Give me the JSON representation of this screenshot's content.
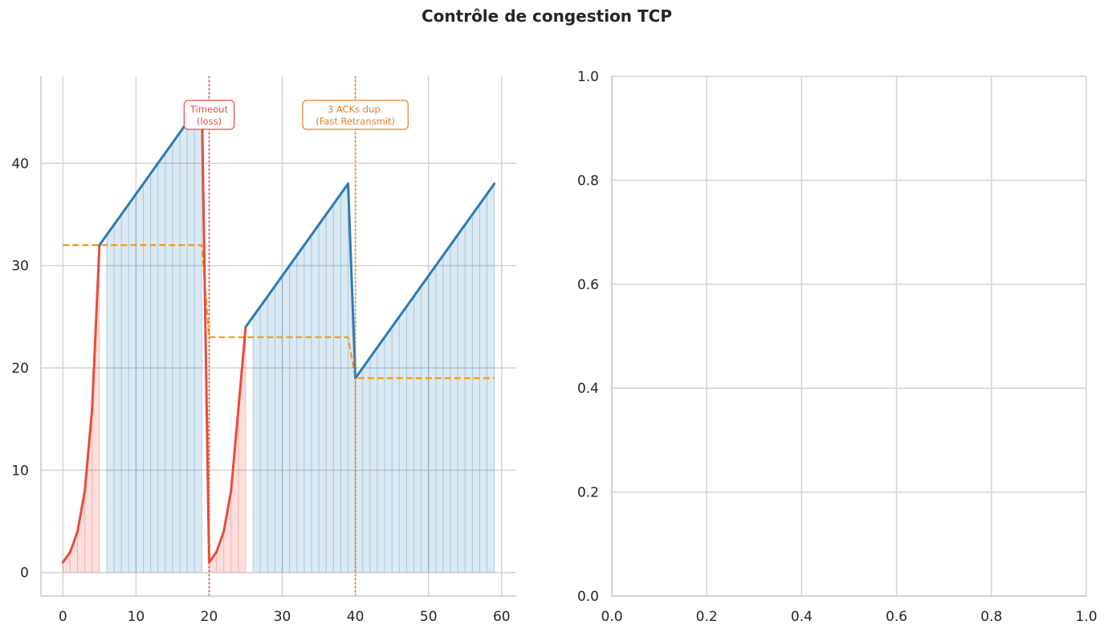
{
  "title": "Contrôle de congestion TCP",
  "colors": {
    "slow_start": "#e74c3c",
    "congestion_avoidance": "#2b7bb9",
    "ssthresh": "#f39c12",
    "timeout": "#e74c3c",
    "fast_retransmit": "#e67e22",
    "grid": "#d3d3d3",
    "text": "#262626"
  },
  "chart_data": [
    {
      "type": "line",
      "title": "",
      "xlabel": "",
      "ylabel": "",
      "xlim": [
        -3,
        62
      ],
      "ylim": [
        -2.3,
        48.5
      ],
      "xticks": [
        0,
        10,
        20,
        30,
        40,
        50,
        60
      ],
      "yticks": [
        0,
        10,
        20,
        30,
        40
      ],
      "grid": true,
      "legend": "none",
      "series": [
        {
          "role": "cwnd",
          "x": [
            0,
            1,
            2,
            3,
            4,
            5,
            6,
            7,
            8,
            9,
            10,
            11,
            12,
            13,
            14,
            15,
            16,
            17,
            18,
            19,
            20,
            21,
            22,
            23,
            24,
            25,
            26,
            27,
            28,
            29,
            30,
            31,
            32,
            33,
            34,
            35,
            36,
            37,
            38,
            39,
            40,
            41,
            42,
            43,
            44,
            45,
            46,
            47,
            48,
            49,
            50,
            51,
            52,
            53,
            54,
            55,
            56,
            57,
            58,
            59
          ],
          "y": [
            1,
            2,
            4,
            8,
            16,
            32,
            33,
            34,
            35,
            36,
            37,
            38,
            39,
            40,
            41,
            42,
            43,
            44,
            45,
            46,
            1,
            2,
            4,
            8,
            16,
            24,
            25,
            26,
            27,
            28,
            29,
            30,
            31,
            32,
            33,
            34,
            35,
            36,
            37,
            38,
            19,
            20,
            21,
            22,
            23,
            24,
            25,
            26,
            27,
            28,
            29,
            30,
            31,
            32,
            33,
            34,
            35,
            36,
            37,
            38
          ],
          "phase": [
            "slow_start",
            "slow_start",
            "slow_start",
            "slow_start",
            "slow_start",
            "slow_start",
            "ca",
            "ca",
            "ca",
            "ca",
            "ca",
            "ca",
            "ca",
            "ca",
            "ca",
            "ca",
            "ca",
            "ca",
            "ca",
            "ca",
            "slow_start",
            "slow_start",
            "slow_start",
            "slow_start",
            "slow_start",
            "slow_start",
            "ca",
            "ca",
            "ca",
            "ca",
            "ca",
            "ca",
            "ca",
            "ca",
            "ca",
            "ca",
            "ca",
            "ca",
            "ca",
            "ca",
            "ca",
            "ca",
            "ca",
            "ca",
            "ca",
            "ca",
            "ca",
            "ca",
            "ca",
            "ca",
            "ca",
            "ca",
            "ca",
            "ca",
            "ca",
            "ca",
            "ca",
            "ca",
            "ca",
            "ca"
          ]
        },
        {
          "role": "ssthresh",
          "style": "dashed",
          "x": [
            0,
            1,
            2,
            3,
            4,
            5,
            6,
            7,
            8,
            9,
            10,
            11,
            12,
            13,
            14,
            15,
            16,
            17,
            18,
            19,
            20,
            21,
            22,
            23,
            24,
            25,
            26,
            27,
            28,
            29,
            30,
            31,
            32,
            33,
            34,
            35,
            36,
            37,
            38,
            39,
            40,
            41,
            42,
            43,
            44,
            45,
            46,
            47,
            48,
            49,
            50,
            51,
            52,
            53,
            54,
            55,
            56,
            57,
            58,
            59
          ],
          "y": [
            32,
            32,
            32,
            32,
            32,
            32,
            32,
            32,
            32,
            32,
            32,
            32,
            32,
            32,
            32,
            32,
            32,
            32,
            32,
            32,
            23,
            23,
            23,
            23,
            23,
            23,
            23,
            23,
            23,
            23,
            23,
            23,
            23,
            23,
            23,
            23,
            23,
            23,
            23,
            23,
            19,
            19,
            19,
            19,
            19,
            19,
            19,
            19,
            19,
            19,
            19,
            19,
            19,
            19,
            19,
            19,
            19,
            19,
            19,
            19
          ]
        }
      ],
      "events": [
        {
          "x": 20,
          "kind": "timeout",
          "label": "Timeout\n(loss)"
        },
        {
          "x": 40,
          "kind": "fast_retransmit",
          "label": "3 ACKs dup.\n(Fast Retransmit)"
        }
      ]
    },
    {
      "type": "line",
      "title": "",
      "xlabel": "",
      "ylabel": "",
      "xlim": [
        0,
        1
      ],
      "ylim": [
        0,
        1
      ],
      "xticks": [
        "0.0",
        "0.2",
        "0.4",
        "0.6",
        "0.8",
        "1.0"
      ],
      "yticks": [
        "0.0",
        "0.2",
        "0.4",
        "0.6",
        "0.8",
        "1.0"
      ],
      "grid": true,
      "legend": "none",
      "series": []
    }
  ]
}
